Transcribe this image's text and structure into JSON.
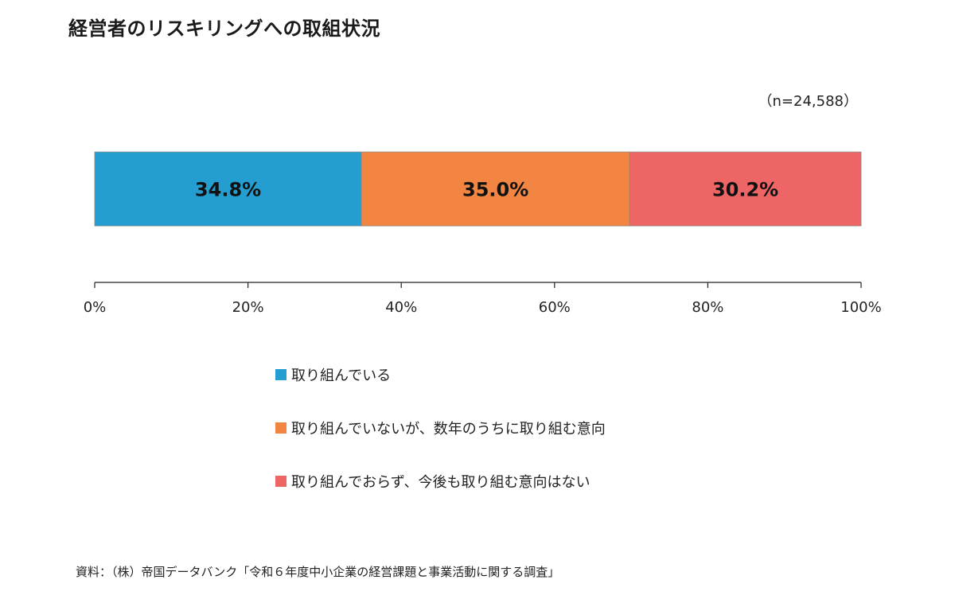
{
  "chart_data": {
    "type": "bar",
    "orientation": "horizontal-stacked-100",
    "title": "経営者のリスキリングへの取組状況",
    "sample_size": "（n=24,588）",
    "series": [
      {
        "name": "取り組んでいる",
        "value": 34.8,
        "label": "34.8%",
        "color": "#249ed1"
      },
      {
        "name": "取り組んでいないが、数年のうちに取り組む意向",
        "value": 35.0,
        "label": "35.0%",
        "color": "#f28542"
      },
      {
        "name": "取り組んでおらず、今後も取り組む意向はない",
        "value": 30.2,
        "label": "30.2%",
        "color": "#ee6566"
      }
    ],
    "xlim": [
      0,
      100
    ],
    "ticks": [
      0,
      20,
      40,
      60,
      80,
      100
    ],
    "tick_labels": [
      "0%",
      "20%",
      "40%",
      "60%",
      "80%",
      "100%"
    ],
    "grid": false,
    "legend_placement": "bottom"
  },
  "source": "資料：（株）帝国データバンク「令和６年度中小企業の経営課題と事業活動に関する調査」"
}
